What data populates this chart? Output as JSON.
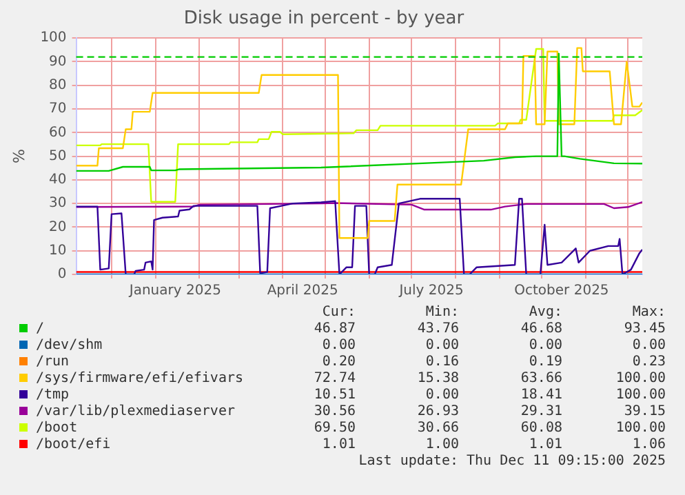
{
  "chart_data": {
    "type": "line",
    "title": "Disk usage in percent - by year",
    "ylabel": "%",
    "xlim": [
      "2024-11-06",
      "2025-12-11"
    ],
    "xticks": [
      {
        "value": "2024-12-01",
        "label": null
      },
      {
        "value": "2025-01-01",
        "label": null
      },
      {
        "value": "2025-01-15",
        "label": "January 2025"
      },
      {
        "value": "2025-02-01",
        "label": null
      },
      {
        "value": "2025-03-01",
        "label": null
      },
      {
        "value": "2025-04-01",
        "label": null
      },
      {
        "value": "2025-04-15",
        "label": "April 2025"
      },
      {
        "value": "2025-05-01",
        "label": null
      },
      {
        "value": "2025-06-01",
        "label": null
      },
      {
        "value": "2025-07-01",
        "label": null
      },
      {
        "value": "2025-07-15",
        "label": "July 2025"
      },
      {
        "value": "2025-08-01",
        "label": null
      },
      {
        "value": "2025-09-01",
        "label": null
      },
      {
        "value": "2025-10-01",
        "label": null
      },
      {
        "value": "2025-10-15",
        "label": "October 2025"
      },
      {
        "value": "2025-11-01",
        "label": null
      },
      {
        "value": "2025-12-01",
        "label": null
      }
    ],
    "ylim": [
      0,
      100
    ],
    "yticks": [
      0,
      10,
      20,
      30,
      40,
      50,
      60,
      70,
      80,
      90,
      100
    ],
    "grid": true,
    "legend": "bottom",
    "marker": "none",
    "line_style": "solid",
    "ref_lines": [
      {
        "axis": "y",
        "value": 92,
        "color": "#00cc00",
        "line_style": "dashed"
      }
    ],
    "series": [
      {
        "name": "/",
        "color": "#00cc00",
        "x": [
          "2024-11-06",
          "2024-11-29",
          "2024-12-09",
          "2024-12-28",
          "2024-12-29",
          "2025-01-15",
          "2025-01-18",
          "2025-04-28",
          "2025-07-20",
          "2025-08-21",
          "2025-09-12",
          "2025-09-27",
          "2025-10-12",
          "2025-10-13",
          "2025-10-15",
          "2025-10-17",
          "2025-10-28",
          "2025-11-21",
          "2025-12-11"
        ],
        "values": [
          43.8,
          43.8,
          45.5,
          45.5,
          44,
          44,
          44.5,
          45.2,
          47.3,
          48.1,
          49.6,
          50,
          50,
          93.4,
          50,
          50,
          48.9,
          47,
          46.9
        ]
      },
      {
        "name": "/dev/shm",
        "color": "#0066b3",
        "x": [
          "2024-11-06",
          "2025-12-11"
        ],
        "values": [
          0,
          0
        ]
      },
      {
        "name": "/run",
        "color": "#ff8000"
      },
      {
        "name": "/sys/firmware/efi/efivars",
        "color": "#ffcc00",
        "x": [
          "2024-11-06",
          "2024-11-21",
          "2024-11-22",
          "2024-12-09",
          "2024-12-11",
          "2024-12-15",
          "2024-12-16",
          "2024-12-28",
          "2024-12-30",
          "2025-03-15",
          "2025-03-17",
          "2025-05-10",
          "2025-05-11",
          "2025-05-31",
          "2025-06-01",
          "2025-06-19",
          "2025-06-21",
          "2025-08-05",
          "2025-08-10",
          "2025-09-05",
          "2025-09-07",
          "2025-09-17",
          "2025-09-18",
          "2025-09-26",
          "2025-09-27",
          "2025-10-03",
          "2025-10-05",
          "2025-10-12",
          "2025-10-13",
          "2025-10-24",
          "2025-10-26",
          "2025-10-29",
          "2025-10-30",
          "2025-11-18",
          "2025-11-21",
          "2025-11-26",
          "2025-11-30",
          "2025-12-04",
          "2025-12-09",
          "2025-12-11"
        ],
        "values": [
          46,
          46,
          53.4,
          53.4,
          61.4,
          61.4,
          68.8,
          68.8,
          76.8,
          76.8,
          84.4,
          84.4,
          15.4,
          15.4,
          22.6,
          22.6,
          38,
          38,
          61.4,
          61.4,
          63.9,
          63.9,
          92.4,
          92.4,
          63.5,
          63.5,
          94.3,
          94.3,
          63.5,
          63.5,
          95.8,
          95.8,
          85.9,
          85.9,
          63.5,
          63.5,
          90,
          71,
          71,
          72.7
        ]
      },
      {
        "name": "/tmp",
        "color": "#330099",
        "x": [
          "2024-11-06",
          "2024-11-21",
          "2024-11-23",
          "2024-11-29",
          "2024-12-01",
          "2024-12-08",
          "2024-12-11",
          "2024-12-17",
          "2024-12-18",
          "2024-12-24",
          "2024-12-25",
          "2024-12-29",
          "2024-12-30",
          "2024-12-31",
          "2025-01-06",
          "2025-01-17",
          "2025-01-18",
          "2025-01-25",
          "2025-01-28",
          "2025-03-14",
          "2025-03-16",
          "2025-03-21",
          "2025-03-23",
          "2025-03-31",
          "2025-04-08",
          "2025-04-28",
          "2025-05-08",
          "2025-05-11",
          "2025-05-16",
          "2025-05-20",
          "2025-05-22",
          "2025-05-30",
          "2025-06-01",
          "2025-06-05",
          "2025-06-07",
          "2025-06-17",
          "2025-06-22",
          "2025-07-07",
          "2025-08-04",
          "2025-08-07",
          "2025-08-11",
          "2025-08-16",
          "2025-09-12",
          "2025-09-15",
          "2025-09-17",
          "2025-09-20",
          "2025-09-30",
          "2025-10-03",
          "2025-10-05",
          "2025-10-15",
          "2025-10-25",
          "2025-10-27",
          "2025-11-04",
          "2025-11-17",
          "2025-11-24",
          "2025-11-25",
          "2025-11-27",
          "2025-12-03",
          "2025-12-09",
          "2025-12-11"
        ],
        "values": [
          28.7,
          28.7,
          2,
          2.5,
          25.5,
          25.8,
          0,
          0,
          1.5,
          2,
          5,
          5.5,
          2,
          23,
          24,
          24.5,
          27,
          27.5,
          29,
          29,
          0.5,
          1,
          28,
          29,
          30,
          30.5,
          31,
          0,
          3,
          3,
          29,
          29,
          0,
          0,
          3,
          4,
          30,
          32,
          32,
          0,
          0,
          3,
          4,
          32,
          32,
          0,
          0,
          21,
          4,
          5,
          11,
          5,
          10,
          12,
          12,
          15,
          0,
          2,
          9,
          10.5
        ]
      },
      {
        "name": "/var/lib/plexmediaserver",
        "color": "#990099",
        "x": [
          "2024-11-06",
          "2025-01-28",
          "2025-02-01",
          "2025-04-28",
          "2025-05-08",
          "2025-07-01",
          "2025-07-10",
          "2025-08-26",
          "2025-09-05",
          "2025-09-20",
          "2025-11-14",
          "2025-11-21",
          "2025-12-01",
          "2025-12-11"
        ],
        "values": [
          28.5,
          28.7,
          29.5,
          30,
          30.2,
          29.5,
          27.4,
          27.4,
          28.7,
          29.8,
          29.8,
          28,
          28.5,
          30.6
        ]
      },
      {
        "name": "/boot",
        "color": "#ccff00",
        "x": [
          "2024-11-06",
          "2024-11-23",
          "2024-11-24",
          "2024-12-27",
          "2024-12-29",
          "2025-01-15",
          "2025-01-17",
          "2025-02-22",
          "2025-02-23",
          "2025-03-14",
          "2025-03-15",
          "2025-03-22",
          "2025-03-24",
          "2025-03-30",
          "2025-04-01",
          "2025-04-28",
          "2025-05-21",
          "2025-05-23",
          "2025-06-07",
          "2025-06-09",
          "2025-08-29",
          "2025-08-31",
          "2025-09-15",
          "2025-09-16",
          "2025-09-20",
          "2025-09-27",
          "2025-10-02",
          "2025-10-03",
          "2025-11-20",
          "2025-11-21",
          "2025-12-06",
          "2025-12-11"
        ],
        "values": [
          54.6,
          54.6,
          55.1,
          55.1,
          30.7,
          30.7,
          55.1,
          55.1,
          55.9,
          55.9,
          57.2,
          57.2,
          60.3,
          60.3,
          59.3,
          59.5,
          59.7,
          61,
          61,
          62.9,
          62.9,
          63.9,
          63.9,
          65.4,
          65.4,
          95.4,
          95.4,
          65,
          65,
          67.3,
          67.3,
          69.5
        ]
      },
      {
        "name": "/boot/efi",
        "color": "#ff0000",
        "x": [
          "2024-11-06",
          "2025-12-11"
        ],
        "values": [
          1,
          1
        ]
      }
    ],
    "annotations": [
      "Cur:",
      "Min:",
      "Avg:",
      "Max:",
      "46.87",
      "43.76",
      "46.68",
      "93.45",
      "0.00",
      "0.00",
      "0.00",
      "0.00",
      "0.20",
      "0.16",
      "0.19",
      "0.23",
      "72.74",
      "15.38",
      "63.66",
      "100.00",
      "10.51",
      "0.00",
      "18.41",
      "100.00",
      "30.56",
      "26.93",
      "29.31",
      "39.15",
      "69.50",
      "30.66",
      "60.08",
      "100.00",
      "1.01",
      "1.00",
      "1.01",
      "1.06",
      "Last update: Thu Dec 11 09:15:00 2025"
    ]
  }
}
